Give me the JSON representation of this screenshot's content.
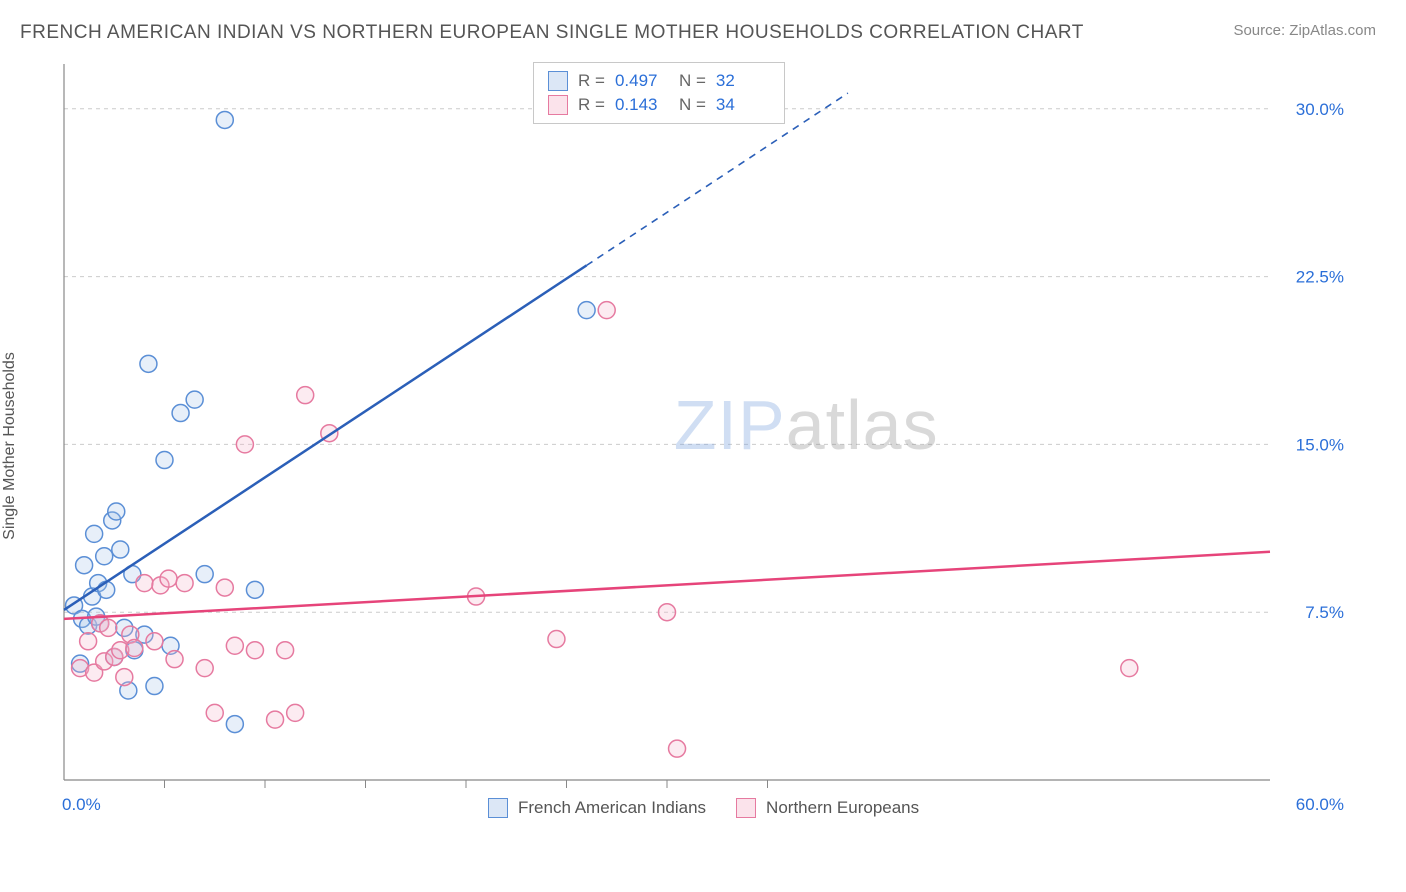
{
  "title": "FRENCH AMERICAN INDIAN VS NORTHERN EUROPEAN SINGLE MOTHER HOUSEHOLDS CORRELATION CHART",
  "source": "Source: ZipAtlas.com",
  "y_axis_label": "Single Mother Households",
  "watermark": {
    "part1": "ZIP",
    "part2": "atlas"
  },
  "chart": {
    "type": "scatter-with-regression",
    "background_color": "#ffffff",
    "grid_color": "#cccccc",
    "axis_color": "#888888",
    "value_text_color": "#2b6fd8",
    "label_text_color": "#555555",
    "xlim": [
      0,
      60
    ],
    "ylim": [
      0,
      32
    ],
    "x_ticks": [
      0,
      60
    ],
    "x_tick_labels": [
      "0.0%",
      "60.0%"
    ],
    "x_minor_ticks": [
      5,
      10,
      15,
      20,
      25,
      30,
      35
    ],
    "y_ticks": [
      7.5,
      15.0,
      22.5,
      30.0
    ],
    "y_tick_labels": [
      "7.5%",
      "15.0%",
      "22.5%",
      "30.0%"
    ],
    "marker_radius": 8.5,
    "marker_stroke_width": 1.5,
    "marker_fill_opacity": 0.28,
    "line_width": 2.5,
    "title_fontsize": 19,
    "axis_fontsize": 17
  },
  "series": [
    {
      "key": "french_american_indians",
      "label": "French American Indians",
      "color_stroke": "#5b8fd6",
      "color_fill": "#a8c4e8",
      "line_color": "#2b5fb8",
      "R": "0.497",
      "N": "32",
      "regression": {
        "x1": 0,
        "y1": 7.6,
        "x2": 26,
        "y2": 23.0,
        "dash_from_x": 26,
        "dash_to_x": 39,
        "dash_to_y": 30.7
      },
      "points": [
        [
          0.5,
          7.8
        ],
        [
          0.8,
          5.2
        ],
        [
          0.9,
          7.2
        ],
        [
          1.0,
          9.6
        ],
        [
          1.2,
          6.9
        ],
        [
          1.4,
          8.2
        ],
        [
          1.5,
          11.0
        ],
        [
          1.6,
          7.3
        ],
        [
          1.7,
          8.8
        ],
        [
          1.8,
          7.0
        ],
        [
          2.0,
          10.0
        ],
        [
          2.1,
          8.5
        ],
        [
          2.4,
          11.6
        ],
        [
          2.5,
          5.5
        ],
        [
          2.6,
          12.0
        ],
        [
          2.8,
          10.3
        ],
        [
          3.0,
          6.8
        ],
        [
          3.2,
          4.0
        ],
        [
          3.4,
          9.2
        ],
        [
          3.5,
          5.8
        ],
        [
          4.0,
          6.5
        ],
        [
          4.2,
          18.6
        ],
        [
          4.5,
          4.2
        ],
        [
          5.0,
          14.3
        ],
        [
          5.3,
          6.0
        ],
        [
          5.8,
          16.4
        ],
        [
          6.5,
          17.0
        ],
        [
          7.0,
          9.2
        ],
        [
          8.0,
          29.5
        ],
        [
          8.5,
          2.5
        ],
        [
          9.5,
          8.5
        ],
        [
          26.0,
          21.0
        ]
      ]
    },
    {
      "key": "northern_europeans",
      "label": "Northern Europeans",
      "color_stroke": "#e67aa0",
      "color_fill": "#f4b8cd",
      "line_color": "#e6447a",
      "R": "0.143",
      "N": "34",
      "regression": {
        "x1": 0,
        "y1": 7.2,
        "x2": 60,
        "y2": 10.2
      },
      "points": [
        [
          0.8,
          5.0
        ],
        [
          1.2,
          6.2
        ],
        [
          1.5,
          4.8
        ],
        [
          1.8,
          7.0
        ],
        [
          2.0,
          5.3
        ],
        [
          2.2,
          6.8
        ],
        [
          2.5,
          5.5
        ],
        [
          2.8,
          5.8
        ],
        [
          3.0,
          4.6
        ],
        [
          3.3,
          6.5
        ],
        [
          3.5,
          5.9
        ],
        [
          4.0,
          8.8
        ],
        [
          4.5,
          6.2
        ],
        [
          4.8,
          8.7
        ],
        [
          5.2,
          9.0
        ],
        [
          5.5,
          5.4
        ],
        [
          6.0,
          8.8
        ],
        [
          7.0,
          5.0
        ],
        [
          7.5,
          3.0
        ],
        [
          8.0,
          8.6
        ],
        [
          8.5,
          6.0
        ],
        [
          9.0,
          15.0
        ],
        [
          9.5,
          5.8
        ],
        [
          10.5,
          2.7
        ],
        [
          11.0,
          5.8
        ],
        [
          11.5,
          3.0
        ],
        [
          12.0,
          17.2
        ],
        [
          13.2,
          15.5
        ],
        [
          20.5,
          8.2
        ],
        [
          24.5,
          6.3
        ],
        [
          27.0,
          21.0
        ],
        [
          30.0,
          7.5
        ],
        [
          30.5,
          1.4
        ],
        [
          53.0,
          5.0
        ]
      ]
    }
  ],
  "legend_box": {
    "R_label": "R =",
    "N_label": "N ="
  }
}
